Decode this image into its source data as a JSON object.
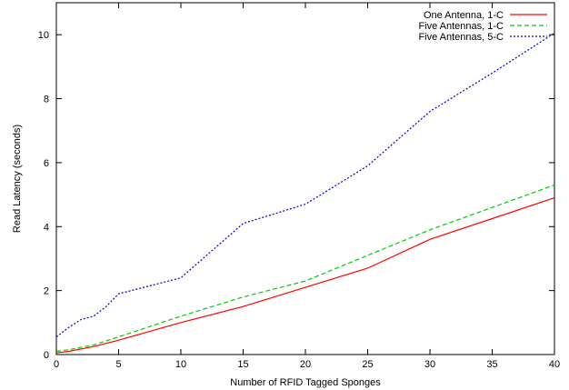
{
  "chart_data": {
    "type": "line",
    "title": "",
    "xlabel": "Number of RFID Tagged Sponges",
    "ylabel": "Read Latency (seconds)",
    "xlim": [
      0,
      40
    ],
    "ylim": [
      0,
      11
    ],
    "xticks": [
      0,
      5,
      10,
      15,
      20,
      25,
      30,
      35,
      40
    ],
    "yticks": [
      0,
      2,
      4,
      6,
      8,
      10
    ],
    "grid": false,
    "legend_position": "top-right",
    "series": [
      {
        "name": "One Antenna, 1-C",
        "color": "#ff0000",
        "dash": "solid",
        "x": [
          0,
          1,
          3,
          5,
          10,
          15,
          20,
          25,
          30,
          35,
          40
        ],
        "y": [
          0.05,
          0.1,
          0.25,
          0.45,
          1.0,
          1.5,
          2.1,
          2.7,
          3.6,
          4.25,
          4.9
        ]
      },
      {
        "name": "Five Antennas, 1-C",
        "color": "#00cc00",
        "dash": "dashed",
        "x": [
          0,
          1,
          3,
          5,
          10,
          15,
          20,
          25,
          30,
          35,
          40
        ],
        "y": [
          0.1,
          0.15,
          0.3,
          0.55,
          1.2,
          1.8,
          2.3,
          3.1,
          3.9,
          4.6,
          5.3
        ]
      },
      {
        "name": "Five Antennas, 5-C",
        "color": "#0000cc",
        "dash": "dotted",
        "x": [
          0,
          1,
          2,
          3,
          4,
          5,
          10,
          15,
          20,
          25,
          30,
          35,
          40
        ],
        "y": [
          0.55,
          0.85,
          1.1,
          1.2,
          1.5,
          1.9,
          2.4,
          4.1,
          4.7,
          5.9,
          7.6,
          8.8,
          10.05
        ]
      }
    ]
  }
}
